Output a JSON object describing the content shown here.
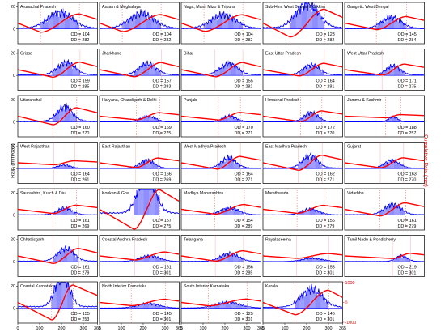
{
  "chart_data": {
    "type": "line",
    "ylabel_left": "Rain (mm/day)",
    "ylabel_right": "Cumulative Rain (mm)",
    "xlim": [
      0,
      365
    ],
    "x_ticks": [
      "0",
      "100",
      "200",
      "300",
      "365"
    ],
    "right_ticks": [
      "1000",
      "0",
      "-1000"
    ],
    "ylim_right": [
      -1000,
      1000
    ],
    "left_ticks": [
      "20",
      "0"
    ],
    "ylim_left": [
      0,
      40
    ],
    "colors": {
      "rain": "#0000ff",
      "cumulative": "#ff0000",
      "od_line": "#e06060",
      "frame": "#000000"
    },
    "subdivisions": [
      {
        "name": "Arunachal Pradesh",
        "od": 104,
        "dd": 282,
        "peak": 14,
        "amp": 460
      },
      {
        "name": "Assam & Meghalaya",
        "od": 104,
        "dd": 282,
        "peak": 13,
        "amp": 430
      },
      {
        "name": "Naga, Mani, Mizo & Tripura",
        "od": 104,
        "dd": 282,
        "peak": 12,
        "amp": 420
      },
      {
        "name": "Sub-Him. West Bengal & Sikkim",
        "od": 123,
        "dd": 282,
        "peak": 22,
        "amp": 700
      },
      {
        "name": "Gangetic West Bengal",
        "od": 145,
        "dd": 284,
        "peak": 10,
        "amp": 330
      },
      {
        "name": "Orissa",
        "od": 159,
        "dd": 285,
        "peak": 11,
        "amp": 380
      },
      {
        "name": "Jharkhand",
        "od": 157,
        "dd": 283,
        "peak": 10,
        "amp": 360
      },
      {
        "name": "Bihar",
        "od": 155,
        "dd": 282,
        "peak": 10,
        "amp": 360
      },
      {
        "name": "East Uttar Pradesh",
        "od": 164,
        "dd": 281,
        "peak": 9,
        "amp": 320
      },
      {
        "name": "West Uttar Pradesh",
        "od": 171,
        "dd": 275,
        "peak": 8,
        "amp": 280
      },
      {
        "name": "Uttaranchal",
        "od": 160,
        "dd": 270,
        "peak": 13,
        "amp": 430
      },
      {
        "name": "Haryana, Chandigarh & Delhi",
        "od": 169,
        "dd": 275,
        "peak": 5,
        "amp": 180
      },
      {
        "name": "Punjab",
        "od": 170,
        "dd": 271,
        "peak": 5,
        "amp": 190
      },
      {
        "name": "Himachal Pradesh",
        "od": 172,
        "dd": 270,
        "peak": 8,
        "amp": 270
      },
      {
        "name": "Jammu & Kashmir",
        "od": 188,
        "dd": 257,
        "peak": 4,
        "amp": 80
      },
      {
        "name": "West Rajasthan",
        "od": 164,
        "dd": 261,
        "peak": 3,
        "amp": 100
      },
      {
        "name": "East Rajasthan",
        "od": 166,
        "dd": 269,
        "peak": 7,
        "amp": 240
      },
      {
        "name": "West Madhya Pradesh",
        "od": 164,
        "dd": 271,
        "peak": 9,
        "amp": 320
      },
      {
        "name": "East Madhya Pradesh",
        "od": 162,
        "dd": 271,
        "peak": 11,
        "amp": 380
      },
      {
        "name": "Gujarat",
        "od": 163,
        "dd": 270,
        "peak": 7,
        "amp": 250
      },
      {
        "name": "Saurashtra, Kutch & Diu",
        "od": 161,
        "dd": 269,
        "peak": 6,
        "amp": 210
      },
      {
        "name": "Konkan & Goa",
        "od": 157,
        "dd": 275,
        "peak": 38,
        "amp": 1000
      },
      {
        "name": "Madhya Maharashtra",
        "od": 154,
        "dd": 289,
        "peak": 6,
        "amp": 240
      },
      {
        "name": "Marathwada",
        "od": 156,
        "dd": 279,
        "peak": 5,
        "amp": 200
      },
      {
        "name": "Vidarbha",
        "od": 161,
        "dd": 279,
        "peak": 9,
        "amp": 330
      },
      {
        "name": "Chhattisgarh",
        "od": 161,
        "dd": 279,
        "peak": 11,
        "amp": 380
      },
      {
        "name": "Coastal Andhra Pradesh",
        "od": 161,
        "dd": 301,
        "peak": 5,
        "amp": 200
      },
      {
        "name": "Telangana",
        "od": 156,
        "dd": 285,
        "peak": 7,
        "amp": 260
      },
      {
        "name": "Rayalaseema",
        "od": 153,
        "dd": 301,
        "peak": 3,
        "amp": 120
      },
      {
        "name": "Tamil Nadu & Pondicherry",
        "od": 219,
        "dd": 301,
        "peak": 5,
        "amp": 130
      },
      {
        "name": "Coastal Karnataka",
        "od": 155,
        "dd": 253,
        "peak": 30,
        "amp": 880
      },
      {
        "name": "North Interior Karnataka",
        "od": 145,
        "dd": 301,
        "peak": 4,
        "amp": 160
      },
      {
        "name": "South Interior Karnataka",
        "od": 125,
        "dd": 301,
        "peak": 5,
        "amp": 170
      },
      {
        "name": "Kerala",
        "od": 146,
        "dd": 301,
        "peak": 16,
        "amp": 620
      },
      {
        "name": "",
        "od": 0,
        "dd": 0,
        "peak": 0,
        "amp": 0,
        "empty": true
      }
    ]
  }
}
